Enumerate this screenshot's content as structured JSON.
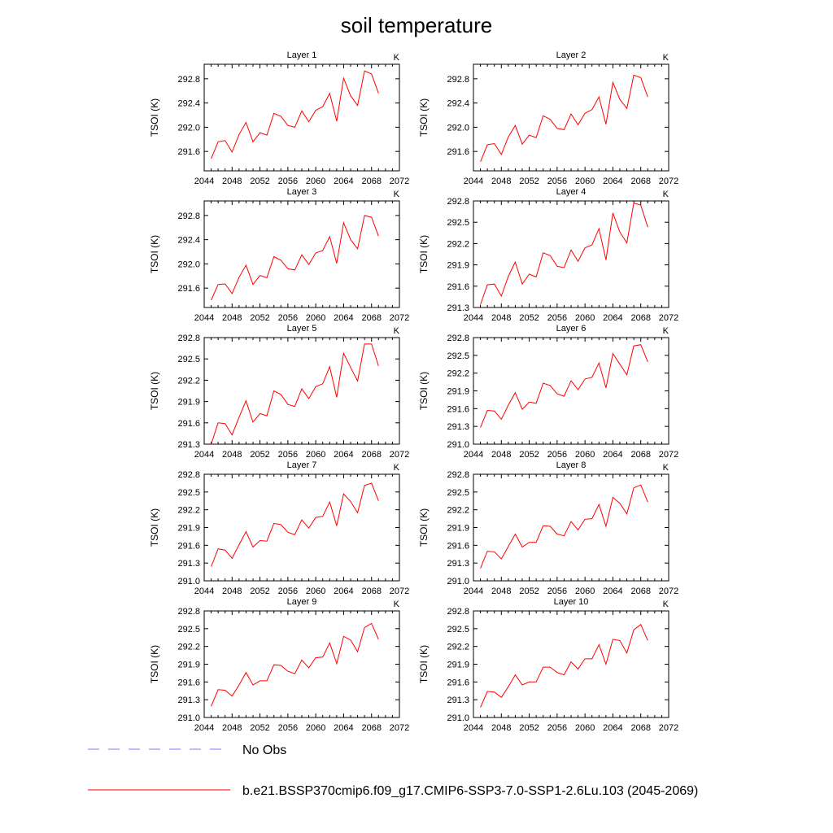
{
  "figure_title": "soil temperature",
  "legend": {
    "entries": [
      {
        "label": "No Obs",
        "color": "#7777ff",
        "style": "dashed"
      },
      {
        "label": "b.e21.BSSP370cmip6.f09_g17.CMIP6-SSP3-7.0-SSP1-2.6Lu.103 (2045-2069)",
        "color": "#ff0000",
        "style": "solid"
      }
    ]
  },
  "chart_data": [
    {
      "type": "line",
      "title": "Layer 1",
      "unit_label": "K",
      "ylabel": "TSOI  (K)",
      "xlim": [
        2044,
        2072
      ],
      "xticks": [
        2044,
        2048,
        2052,
        2056,
        2060,
        2064,
        2068,
        2072
      ],
      "ylim": [
        291.28,
        293.04
      ],
      "yticks": [
        "291.6",
        "292.0",
        "292.4",
        "292.8"
      ],
      "x": [
        2045,
        2046,
        2047,
        2048,
        2049,
        2050,
        2051,
        2052,
        2053,
        2054,
        2055,
        2056,
        2057,
        2058,
        2059,
        2060,
        2061,
        2062,
        2063,
        2064,
        2065,
        2066,
        2067,
        2068,
        2069
      ],
      "series": [
        {
          "values": [
            291.48,
            291.76,
            291.78,
            291.59,
            291.88,
            292.08,
            291.76,
            291.91,
            291.87,
            292.23,
            292.18,
            292.03,
            292.0,
            292.27,
            292.09,
            292.28,
            292.34,
            292.56,
            292.1,
            292.81,
            292.52,
            292.36,
            292.93,
            292.88,
            292.56
          ],
          "color": "#ff0000"
        }
      ]
    },
    {
      "type": "line",
      "title": "Layer 2",
      "unit_label": "K",
      "ylabel": "TSOI  (K)",
      "xlim": [
        2044,
        2072
      ],
      "xticks": [
        2044,
        2048,
        2052,
        2056,
        2060,
        2064,
        2068,
        2072
      ],
      "ylim": [
        291.28,
        293.04
      ],
      "yticks": [
        "291.6",
        "292.0",
        "292.4",
        "292.8"
      ],
      "x": [
        2045,
        2046,
        2047,
        2048,
        2049,
        2050,
        2051,
        2052,
        2053,
        2054,
        2055,
        2056,
        2057,
        2058,
        2059,
        2060,
        2061,
        2062,
        2063,
        2064,
        2065,
        2066,
        2067,
        2068,
        2069
      ],
      "series": [
        {
          "values": [
            291.43,
            291.71,
            291.73,
            291.55,
            291.84,
            292.03,
            291.72,
            291.87,
            291.83,
            292.19,
            292.13,
            291.98,
            291.96,
            292.22,
            292.04,
            292.23,
            292.29,
            292.5,
            292.05,
            292.74,
            292.46,
            292.31,
            292.86,
            292.82,
            292.5
          ],
          "color": "#ff0000"
        }
      ]
    },
    {
      "type": "line",
      "title": "Layer 3",
      "unit_label": "K",
      "ylabel": "TSOI  (K)",
      "xlim": [
        2044,
        2072
      ],
      "xticks": [
        2044,
        2048,
        2052,
        2056,
        2060,
        2064,
        2068,
        2072
      ],
      "ylim": [
        291.28,
        293.04
      ],
      "yticks": [
        "291.6",
        "292.0",
        "292.4",
        "292.8"
      ],
      "x": [
        2045,
        2046,
        2047,
        2048,
        2049,
        2050,
        2051,
        2052,
        2053,
        2054,
        2055,
        2056,
        2057,
        2058,
        2059,
        2060,
        2061,
        2062,
        2063,
        2064,
        2065,
        2066,
        2067,
        2068,
        2069
      ],
      "series": [
        {
          "values": [
            291.4,
            291.66,
            291.67,
            291.51,
            291.78,
            291.98,
            291.66,
            291.81,
            291.77,
            292.12,
            292.06,
            291.92,
            291.9,
            292.15,
            291.99,
            292.18,
            292.22,
            292.45,
            292.01,
            292.68,
            292.4,
            292.25,
            292.8,
            292.77,
            292.46
          ],
          "color": "#ff0000"
        }
      ]
    },
    {
      "type": "line",
      "title": "Layer 4",
      "unit_label": "K",
      "ylabel": "TSOI  (K)",
      "xlim": [
        2044,
        2072
      ],
      "xticks": [
        2044,
        2048,
        2052,
        2056,
        2060,
        2064,
        2068,
        2072
      ],
      "ylim": [
        291.3,
        292.8
      ],
      "yticks": [
        "291.3",
        "291.6",
        "291.9",
        "292.2",
        "292.5",
        "292.8"
      ],
      "x": [
        2045,
        2046,
        2047,
        2048,
        2049,
        2050,
        2051,
        2052,
        2053,
        2054,
        2055,
        2056,
        2057,
        2058,
        2059,
        2060,
        2061,
        2062,
        2063,
        2064,
        2065,
        2066,
        2067,
        2068,
        2069
      ],
      "series": [
        {
          "values": [
            291.34,
            291.62,
            291.63,
            291.46,
            291.74,
            291.94,
            291.63,
            291.77,
            291.73,
            292.07,
            292.03,
            291.88,
            291.86,
            292.11,
            291.95,
            292.14,
            292.18,
            292.41,
            291.97,
            292.63,
            292.36,
            292.21,
            292.77,
            292.74,
            292.43
          ],
          "color": "#ff0000"
        }
      ]
    },
    {
      "type": "line",
      "title": "Layer 5",
      "unit_label": "K",
      "ylabel": "TSOI  (K)",
      "xlim": [
        2044,
        2072
      ],
      "xticks": [
        2044,
        2048,
        2052,
        2056,
        2060,
        2064,
        2068,
        2072
      ],
      "ylim": [
        291.3,
        292.8
      ],
      "yticks": [
        "291.3",
        "291.6",
        "291.9",
        "292.2",
        "292.5",
        "292.8"
      ],
      "x": [
        2045,
        2046,
        2047,
        2048,
        2049,
        2050,
        2051,
        2052,
        2053,
        2054,
        2055,
        2056,
        2057,
        2058,
        2059,
        2060,
        2061,
        2062,
        2063,
        2064,
        2065,
        2066,
        2067,
        2068,
        2069
      ],
      "series": [
        {
          "values": [
            291.3,
            291.6,
            291.59,
            291.43,
            291.68,
            291.91,
            291.61,
            291.73,
            291.7,
            292.05,
            292.0,
            291.86,
            291.83,
            292.08,
            291.94,
            292.11,
            292.15,
            292.39,
            291.96,
            292.58,
            292.38,
            292.19,
            292.71,
            292.71,
            292.4
          ],
          "color": "#ff0000"
        }
      ]
    },
    {
      "type": "line",
      "title": "Layer 6",
      "unit_label": "K",
      "ylabel": "TSOI  (K)",
      "xlim": [
        2044,
        2072
      ],
      "xticks": [
        2044,
        2048,
        2052,
        2056,
        2060,
        2064,
        2068,
        2072
      ],
      "ylim": [
        291.0,
        292.8
      ],
      "yticks": [
        "291.0",
        "291.3",
        "291.6",
        "291.9",
        "292.2",
        "292.5",
        "292.8"
      ],
      "x": [
        2045,
        2046,
        2047,
        2048,
        2049,
        2050,
        2051,
        2052,
        2053,
        2054,
        2055,
        2056,
        2057,
        2058,
        2059,
        2060,
        2061,
        2062,
        2063,
        2064,
        2065,
        2066,
        2067,
        2068,
        2069
      ],
      "series": [
        {
          "values": [
            291.28,
            291.57,
            291.56,
            291.42,
            291.66,
            291.87,
            291.59,
            291.71,
            291.69,
            292.03,
            291.99,
            291.85,
            291.81,
            292.07,
            291.92,
            292.1,
            292.13,
            292.37,
            291.95,
            292.53,
            292.35,
            292.17,
            292.66,
            292.68,
            292.39
          ],
          "color": "#ff0000"
        }
      ]
    },
    {
      "type": "line",
      "title": "Layer 7",
      "unit_label": "K",
      "ylabel": "TSOI  (K)",
      "xlim": [
        2044,
        2072
      ],
      "xticks": [
        2044,
        2048,
        2052,
        2056,
        2060,
        2064,
        2068,
        2072
      ],
      "ylim": [
        291.0,
        292.8
      ],
      "yticks": [
        "291.0",
        "291.3",
        "291.6",
        "291.9",
        "292.2",
        "292.5",
        "292.8"
      ],
      "x": [
        2045,
        2046,
        2047,
        2048,
        2049,
        2050,
        2051,
        2052,
        2053,
        2054,
        2055,
        2056,
        2057,
        2058,
        2059,
        2060,
        2061,
        2062,
        2063,
        2064,
        2065,
        2066,
        2067,
        2068,
        2069
      ],
      "series": [
        {
          "values": [
            291.24,
            291.54,
            291.52,
            291.38,
            291.61,
            291.83,
            291.57,
            291.68,
            291.67,
            291.97,
            291.95,
            291.82,
            291.78,
            292.03,
            291.89,
            292.07,
            292.09,
            292.33,
            291.93,
            292.47,
            292.34,
            292.15,
            292.61,
            292.65,
            292.35
          ],
          "color": "#ff0000"
        }
      ]
    },
    {
      "type": "line",
      "title": "Layer 8",
      "unit_label": "K",
      "ylabel": "TSOI  (K)",
      "xlim": [
        2044,
        2072
      ],
      "xticks": [
        2044,
        2048,
        2052,
        2056,
        2060,
        2064,
        2068,
        2072
      ],
      "ylim": [
        291.0,
        292.8
      ],
      "yticks": [
        "291.0",
        "291.3",
        "291.6",
        "291.9",
        "292.2",
        "292.5",
        "292.8"
      ],
      "x": [
        2045,
        2046,
        2047,
        2048,
        2049,
        2050,
        2051,
        2052,
        2053,
        2054,
        2055,
        2056,
        2057,
        2058,
        2059,
        2060,
        2061,
        2062,
        2063,
        2064,
        2065,
        2066,
        2067,
        2068,
        2069
      ],
      "series": [
        {
          "values": [
            291.21,
            291.5,
            291.49,
            291.37,
            291.58,
            291.79,
            291.57,
            291.65,
            291.65,
            291.93,
            291.92,
            291.79,
            291.76,
            292.0,
            291.86,
            292.04,
            292.05,
            292.29,
            291.92,
            292.41,
            292.31,
            292.13,
            292.57,
            292.62,
            292.33
          ],
          "color": "#ff0000"
        }
      ]
    },
    {
      "type": "line",
      "title": "Layer 9",
      "unit_label": "K",
      "ylabel": "TSOI  (K)",
      "xlim": [
        2044,
        2072
      ],
      "xticks": [
        2044,
        2048,
        2052,
        2056,
        2060,
        2064,
        2068,
        2072
      ],
      "ylim": [
        291.0,
        292.8
      ],
      "yticks": [
        "291.0",
        "291.3",
        "291.6",
        "291.9",
        "292.2",
        "292.5",
        "292.8"
      ],
      "x": [
        2045,
        2046,
        2047,
        2048,
        2049,
        2050,
        2051,
        2052,
        2053,
        2054,
        2055,
        2056,
        2057,
        2058,
        2059,
        2060,
        2061,
        2062,
        2063,
        2064,
        2065,
        2066,
        2067,
        2068,
        2069
      ],
      "series": [
        {
          "values": [
            291.19,
            291.47,
            291.46,
            291.36,
            291.55,
            291.76,
            291.55,
            291.62,
            291.62,
            291.89,
            291.88,
            291.78,
            291.74,
            291.97,
            291.84,
            292.01,
            292.02,
            292.26,
            291.91,
            292.37,
            292.31,
            292.11,
            292.52,
            292.59,
            292.32
          ],
          "color": "#ff0000"
        }
      ]
    },
    {
      "type": "line",
      "title": "Layer 10",
      "unit_label": "K",
      "ylabel": "TSOI  (K)",
      "xlim": [
        2044,
        2072
      ],
      "xticks": [
        2044,
        2048,
        2052,
        2056,
        2060,
        2064,
        2068,
        2072
      ],
      "ylim": [
        291.0,
        292.8
      ],
      "yticks": [
        "291.0",
        "291.3",
        "291.6",
        "291.9",
        "292.2",
        "292.5",
        "292.8"
      ],
      "x": [
        2045,
        2046,
        2047,
        2048,
        2049,
        2050,
        2051,
        2052,
        2053,
        2054,
        2055,
        2056,
        2057,
        2058,
        2059,
        2060,
        2061,
        2062,
        2063,
        2064,
        2065,
        2066,
        2067,
        2068,
        2069
      ],
      "series": [
        {
          "values": [
            291.17,
            291.44,
            291.43,
            291.34,
            291.52,
            291.72,
            291.55,
            291.6,
            291.6,
            291.85,
            291.85,
            291.76,
            291.72,
            291.94,
            291.82,
            291.99,
            291.99,
            292.23,
            291.9,
            292.32,
            292.3,
            292.09,
            292.48,
            292.57,
            292.3
          ],
          "color": "#ff0000"
        }
      ]
    }
  ]
}
